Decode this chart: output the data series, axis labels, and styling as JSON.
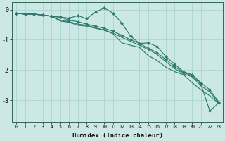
{
  "xlabel": "Humidex (Indice chaleur)",
  "bg_color": "#cce8e4",
  "grid_color": "#aad4ce",
  "line_color": "#2d7a6e",
  "xlim": [
    -0.5,
    23.5
  ],
  "ylim": [
    -3.7,
    0.25
  ],
  "yticks": [
    0,
    -1,
    -2,
    -3
  ],
  "line1_y": [
    -0.12,
    -0.15,
    -0.15,
    -0.18,
    -0.22,
    -0.25,
    -0.28,
    -0.2,
    -0.3,
    -0.08,
    0.05,
    -0.12,
    -0.45,
    -0.88,
    -1.12,
    -1.1,
    -1.22,
    -1.55,
    -1.8,
    -2.05,
    -2.15,
    -2.42,
    -2.65,
    -3.05
  ],
  "line2_y": [
    -0.12,
    -0.15,
    -0.15,
    -0.18,
    -0.22,
    -0.38,
    -0.42,
    -0.52,
    -0.55,
    -0.62,
    -0.68,
    -0.8,
    -1.1,
    -1.18,
    -1.25,
    -1.52,
    -1.68,
    -1.9,
    -2.05,
    -2.15,
    -2.42,
    -2.65,
    -2.85,
    -3.1
  ],
  "line3_y": [
    -0.12,
    -0.15,
    -0.15,
    -0.18,
    -0.22,
    -0.35,
    -0.4,
    -0.48,
    -0.52,
    -0.6,
    -0.68,
    -0.78,
    -0.92,
    -1.05,
    -1.18,
    -1.32,
    -1.48,
    -1.72,
    -1.95,
    -2.12,
    -2.22,
    -2.52,
    -2.72,
    -3.08
  ],
  "line4_y": [
    -0.12,
    -0.15,
    -0.15,
    -0.18,
    -0.22,
    -0.25,
    -0.35,
    -0.4,
    -0.48,
    -0.55,
    -0.62,
    -0.72,
    -0.85,
    -1.0,
    -1.12,
    -1.28,
    -1.42,
    -1.65,
    -1.88,
    -2.08,
    -2.18,
    -2.48,
    -3.35,
    -3.08
  ]
}
